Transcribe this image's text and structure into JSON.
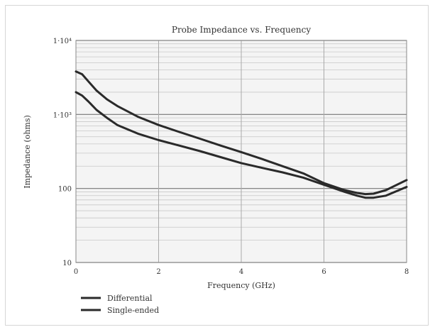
{
  "chart_data": {
    "type": "line",
    "title": "Probe Impedance vs. Frequency",
    "xlabel": "Frequency (GHz)",
    "ylabel": "Impedance (ohms)",
    "xlim": [
      0,
      8
    ],
    "ylim": [
      10,
      10000
    ],
    "yscale": "log",
    "x_ticks": [
      0,
      2,
      4,
      6,
      8
    ],
    "y_ticks": [
      10,
      100,
      1000,
      10000
    ],
    "y_tick_labels": [
      "10",
      "100",
      "1·10³",
      "1·10⁴"
    ],
    "grid": true,
    "legend_position": "bottom-left",
    "series": [
      {
        "name": "Differential",
        "x": [
          0,
          0.15,
          0.3,
          0.5,
          0.75,
          1.0,
          1.5,
          2.0,
          2.5,
          3.0,
          3.5,
          4.0,
          4.5,
          5.0,
          5.5,
          6.0,
          6.5,
          6.8,
          7.0,
          7.2,
          7.5,
          8.0
        ],
        "y": [
          3800,
          3500,
          2800,
          2100,
          1600,
          1300,
          930,
          720,
          580,
          470,
          380,
          310,
          250,
          200,
          160,
          118,
          95,
          87,
          84,
          85,
          95,
          130
        ]
      },
      {
        "name": "Single-ended",
        "x": [
          0,
          0.15,
          0.3,
          0.5,
          0.75,
          1.0,
          1.5,
          2.0,
          2.5,
          3.0,
          3.5,
          4.0,
          4.5,
          5.0,
          5.5,
          6.0,
          6.5,
          6.8,
          7.0,
          7.2,
          7.5,
          8.0
        ],
        "y": [
          2000,
          1800,
          1500,
          1150,
          900,
          720,
          550,
          450,
          380,
          320,
          265,
          220,
          190,
          165,
          140,
          112,
          90,
          80,
          75,
          75,
          80,
          105
        ]
      }
    ]
  }
}
